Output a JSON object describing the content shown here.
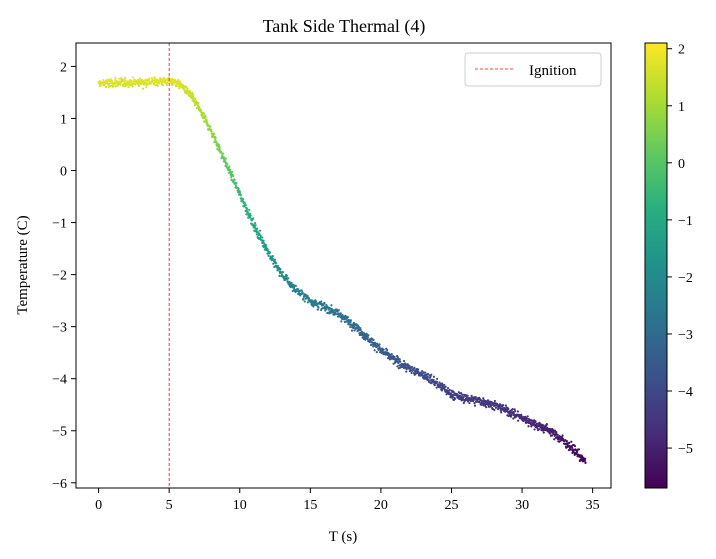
{
  "chart_data": {
    "type": "scatter",
    "title": "Tank Side Thermal (4)",
    "xlabel": "T (s)",
    "ylabel": "Temperature (C)",
    "xlim": [
      -1.6,
      36.3
    ],
    "ylim": [
      -6.1,
      2.45
    ],
    "xticks": [
      0,
      5,
      10,
      15,
      20,
      25,
      30,
      35
    ],
    "yticks": [
      -6,
      -5,
      -4,
      -3,
      -2,
      -1,
      0,
      1,
      2
    ],
    "xtick_labels": [
      "0",
      "5",
      "10",
      "15",
      "20",
      "25",
      "30",
      "35"
    ],
    "ytick_labels": [
      "−6",
      "−5",
      "−4",
      "−3",
      "−2",
      "−1",
      "0",
      "1",
      "2"
    ],
    "grid": false,
    "colormap": "viridis",
    "color_by": "y",
    "colorbar": {
      "range": [
        -5.7,
        2.1
      ],
      "ticks": [
        -5,
        -4,
        -3,
        -2,
        -1,
        0,
        1,
        2
      ],
      "tick_labels": [
        "−5",
        "−4",
        "−3",
        "−2",
        "−1",
        "0",
        "1",
        "2"
      ]
    },
    "trend": [
      {
        "x": 0,
        "y": 1.67
      },
      {
        "x": 1,
        "y": 1.68
      },
      {
        "x": 2,
        "y": 1.69
      },
      {
        "x": 3,
        "y": 1.7
      },
      {
        "x": 4,
        "y": 1.71
      },
      {
        "x": 5,
        "y": 1.72
      },
      {
        "x": 5.5,
        "y": 1.7
      },
      {
        "x": 6,
        "y": 1.6
      },
      {
        "x": 6.5,
        "y": 1.45
      },
      {
        "x": 7,
        "y": 1.25
      },
      {
        "x": 7.5,
        "y": 1.0
      },
      {
        "x": 8,
        "y": 0.75
      },
      {
        "x": 8.5,
        "y": 0.45
      },
      {
        "x": 9,
        "y": 0.15
      },
      {
        "x": 9.5,
        "y": -0.15
      },
      {
        "x": 10,
        "y": -0.45
      },
      {
        "x": 10.5,
        "y": -0.75
      },
      {
        "x": 11,
        "y": -1.05
      },
      {
        "x": 11.5,
        "y": -1.3
      },
      {
        "x": 12,
        "y": -1.55
      },
      {
        "x": 12.5,
        "y": -1.8
      },
      {
        "x": 13,
        "y": -2.0
      },
      {
        "x": 14,
        "y": -2.3
      },
      {
        "x": 15,
        "y": -2.5
      },
      {
        "x": 16,
        "y": -2.62
      },
      {
        "x": 17,
        "y": -2.75
      },
      {
        "x": 18,
        "y": -2.95
      },
      {
        "x": 19,
        "y": -3.2
      },
      {
        "x": 20,
        "y": -3.45
      },
      {
        "x": 21,
        "y": -3.65
      },
      {
        "x": 22,
        "y": -3.8
      },
      {
        "x": 23,
        "y": -3.92
      },
      {
        "x": 24,
        "y": -4.1
      },
      {
        "x": 25,
        "y": -4.3
      },
      {
        "x": 26,
        "y": -4.38
      },
      {
        "x": 27,
        "y": -4.42
      },
      {
        "x": 28,
        "y": -4.5
      },
      {
        "x": 29,
        "y": -4.62
      },
      {
        "x": 30,
        "y": -4.75
      },
      {
        "x": 31,
        "y": -4.88
      },
      {
        "x": 32,
        "y": -5.0
      },
      {
        "x": 33,
        "y": -5.2
      },
      {
        "x": 34,
        "y": -5.45
      },
      {
        "x": 34.5,
        "y": -5.6
      }
    ],
    "x_range": [
      0,
      34.5
    ],
    "noise": 0.06,
    "num_points": 1800,
    "vline": {
      "x": 5,
      "color": "#ff0000",
      "style": "dashed"
    },
    "legend": {
      "placement": "top-right",
      "entries": [
        {
          "label": "Ignition",
          "color": "#ff0000",
          "style": "dashed"
        }
      ]
    }
  }
}
